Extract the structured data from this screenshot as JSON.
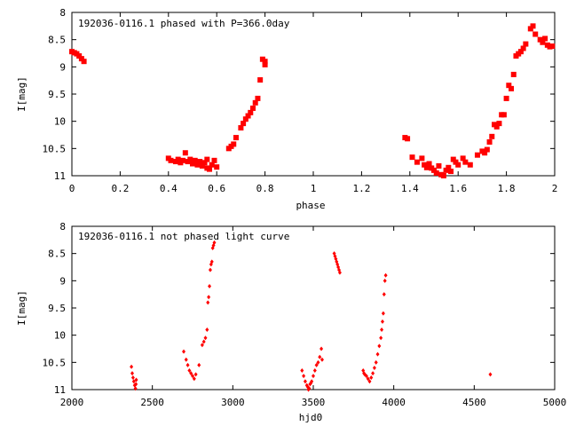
{
  "colors": {
    "series": "#ff0000",
    "axes": "#000000",
    "background": "#ffffff"
  },
  "chart_data": [
    {
      "type": "scatter",
      "title": "192036-0116.1 phased with P=366.0day",
      "xlabel": "phase",
      "ylabel": "I[mag]",
      "xlim": [
        0,
        2
      ],
      "ylim": [
        11,
        8
      ],
      "y_inverted": true,
      "grid": false,
      "xticks": [
        "0",
        "0.2",
        "0.4",
        "0.6",
        "0.8",
        "1",
        "1.2",
        "1.4",
        "1.6",
        "1.8",
        "2"
      ],
      "yticks": [
        "8",
        "8.5",
        "9",
        "9.5",
        "10",
        "10.5",
        "11"
      ],
      "marker": "filled-square",
      "series": [
        {
          "x": [
            0.0,
            0.01,
            0.02,
            0.03,
            0.04,
            0.05,
            0.4,
            0.41,
            0.43,
            0.44,
            0.45,
            0.46,
            0.47,
            0.48,
            0.49,
            0.5,
            0.51,
            0.52,
            0.53,
            0.54,
            0.55,
            0.56,
            0.56,
            0.57,
            0.58,
            0.59,
            0.6,
            0.65,
            0.66,
            0.67,
            0.68,
            0.7,
            0.71,
            0.72,
            0.73,
            0.74,
            0.75,
            0.76,
            0.77,
            0.78,
            0.79,
            0.8,
            0.8,
            1.38,
            1.39,
            1.41,
            1.43,
            1.45,
            1.46,
            1.47,
            1.48,
            1.49,
            1.5,
            1.51,
            1.52,
            1.53,
            1.54,
            1.55,
            1.56,
            1.57,
            1.58,
            1.59,
            1.6,
            1.62,
            1.63,
            1.65,
            1.68,
            1.7,
            1.71,
            1.72,
            1.73,
            1.74,
            1.75,
            1.76,
            1.77,
            1.78,
            1.79,
            1.8,
            1.81,
            1.82,
            1.83,
            1.84,
            1.85,
            1.86,
            1.87,
            1.88,
            1.9,
            1.91,
            1.92,
            1.94,
            1.95,
            1.96,
            1.97,
            1.98,
            1.99
          ],
          "y": [
            8.72,
            8.74,
            8.76,
            8.8,
            8.85,
            8.9,
            10.68,
            10.72,
            10.74,
            10.7,
            10.76,
            10.72,
            10.58,
            10.74,
            10.7,
            10.78,
            10.72,
            10.8,
            10.74,
            10.82,
            10.76,
            10.86,
            10.7,
            10.88,
            10.8,
            10.72,
            10.84,
            10.5,
            10.46,
            10.42,
            10.3,
            10.12,
            10.04,
            9.96,
            9.9,
            9.84,
            9.76,
            9.66,
            9.58,
            9.24,
            8.86,
            8.9,
            8.96,
            10.3,
            10.32,
            10.66,
            10.75,
            10.68,
            10.8,
            10.85,
            10.78,
            10.86,
            10.9,
            10.95,
            10.82,
            10.98,
            11.0,
            10.9,
            10.85,
            10.92,
            10.7,
            10.75,
            10.8,
            10.68,
            10.75,
            10.8,
            10.62,
            10.55,
            10.58,
            10.52,
            10.38,
            10.28,
            10.06,
            10.1,
            10.04,
            9.88,
            9.88,
            9.58,
            9.34,
            9.4,
            9.14,
            8.8,
            8.76,
            8.72,
            8.66,
            8.58,
            8.3,
            8.25,
            8.4,
            8.5,
            8.55,
            8.48,
            8.6,
            8.63,
            8.62
          ]
        }
      ]
    },
    {
      "type": "scatter",
      "title": "192036-0116.1 not phased light curve",
      "xlabel": "hjd0",
      "ylabel": "I[mag]",
      "xlim": [
        2000,
        5000
      ],
      "ylim": [
        11,
        8
      ],
      "y_inverted": true,
      "grid": false,
      "xticks": [
        "2000",
        "2500",
        "3000",
        "3500",
        "4000",
        "4500",
        "5000"
      ],
      "yticks": [
        "8",
        "8.5",
        "9",
        "9.5",
        "10",
        "10.5",
        "11"
      ],
      "marker": "small-diamond",
      "series": [
        {
          "x": [
            2370,
            2375,
            2380,
            2385,
            2390,
            2395,
            2398,
            2400,
            2695,
            2710,
            2720,
            2730,
            2740,
            2750,
            2760,
            2770,
            2790,
            2810,
            2820,
            2830,
            2840,
            2845,
            2850,
            2855,
            2860,
            2865,
            2870,
            2875,
            2880,
            2885,
            3430,
            3440,
            3450,
            3460,
            3465,
            3470,
            3475,
            3480,
            3485,
            3490,
            3500,
            3510,
            3520,
            3530,
            3540,
            3550,
            3555,
            3630,
            3635,
            3640,
            3645,
            3650,
            3655,
            3660,
            3665,
            3810,
            3815,
            3820,
            3830,
            3840,
            3850,
            3860,
            3870,
            3880,
            3890,
            3900,
            3910,
            3920,
            3925,
            3930,
            3935,
            3940,
            3945,
            3950,
            4600
          ],
          "y": [
            10.58,
            10.7,
            10.78,
            10.85,
            10.92,
            10.98,
            10.9,
            10.82,
            10.3,
            10.45,
            10.55,
            10.65,
            10.7,
            10.75,
            10.8,
            10.72,
            10.55,
            10.18,
            10.12,
            10.05,
            9.9,
            9.4,
            9.3,
            9.1,
            8.8,
            8.7,
            8.65,
            8.4,
            8.35,
            8.3,
            10.65,
            10.75,
            10.85,
            10.92,
            10.95,
            11.0,
            10.98,
            10.9,
            10.88,
            10.85,
            10.75,
            10.65,
            10.55,
            10.5,
            10.4,
            10.25,
            10.45,
            8.5,
            8.55,
            8.6,
            8.65,
            8.7,
            8.75,
            8.8,
            8.85,
            10.65,
            10.7,
            10.72,
            10.75,
            10.8,
            10.85,
            10.78,
            10.7,
            10.6,
            10.5,
            10.35,
            10.2,
            10.05,
            9.9,
            9.75,
            9.6,
            9.25,
            9.0,
            8.9,
            10.72
          ]
        }
      ]
    }
  ]
}
